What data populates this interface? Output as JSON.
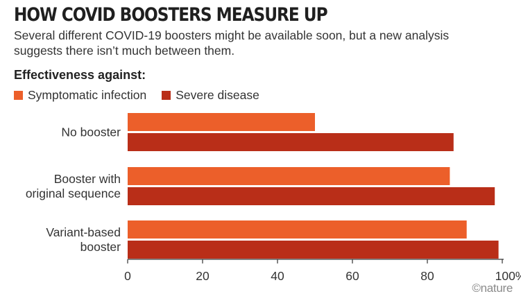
{
  "header": {
    "title": "HOW COVID BOOSTERS MEASURE UP",
    "subtitle": "Several different COVID-19 boosters might be available soon, but a new analysis suggests there isn’t much between them."
  },
  "legend": {
    "heading": "Effectiveness against:",
    "items": [
      {
        "label": "Symptomatic infection",
        "color": "#ec5f2a"
      },
      {
        "label": "Severe disease",
        "color": "#b92e18"
      }
    ]
  },
  "credit": "©nature",
  "chart_data": {
    "type": "bar",
    "orientation": "horizontal",
    "categories": [
      [
        "No booster"
      ],
      [
        "Booster with",
        "original sequence"
      ],
      [
        "Variant-based",
        "booster"
      ]
    ],
    "series": [
      {
        "name": "Symptomatic infection",
        "values": [
          50,
          86,
          90.5
        ],
        "color": "#ec5f2a"
      },
      {
        "name": "Severe disease",
        "values": [
          87,
          98,
          99
        ],
        "color": "#b92e18"
      }
    ],
    "xlim": [
      0,
      100
    ],
    "xticks": [
      "0",
      "20",
      "40",
      "60",
      "80",
      "100%"
    ],
    "grid": false,
    "legend_position": "top-left"
  }
}
